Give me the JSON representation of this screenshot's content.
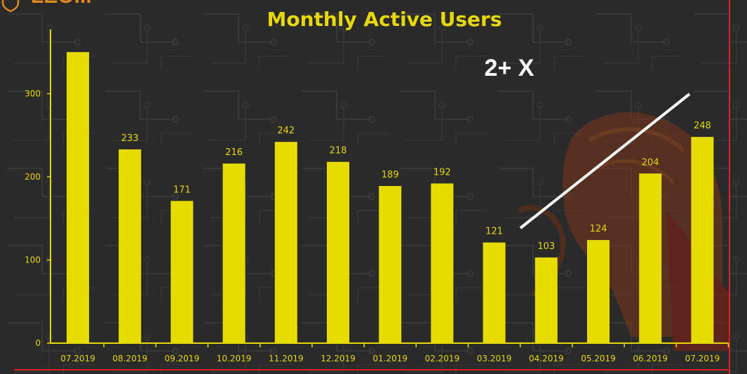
{
  "colors": {
    "background": "#2a2a2a",
    "bar": "#e6dc00",
    "text": "#e6d800",
    "frame": "#e02020",
    "brand": "#e08a1a",
    "annotation_line": "#ffffff"
  },
  "brand": {
    "logo_icon": "shield-logo-icon",
    "text": "LEO..."
  },
  "annotation": {
    "text": "2+ X"
  },
  "chart_data": {
    "type": "bar",
    "title": "Monthly Active Users",
    "xlabel": "",
    "ylabel": "",
    "ylim": [
      0,
      350
    ],
    "yticks": [
      0,
      100,
      200,
      300
    ],
    "grid": false,
    "categories": [
      "07.2019",
      "08.2019",
      "09.2019",
      "10.2019",
      "11.2019",
      "12.2019",
      "01.2019",
      "02.2019",
      "03.2019",
      "04.2019",
      "05.2019",
      "06.2019",
      "07.2019"
    ],
    "values": [
      350,
      233,
      171,
      216,
      242,
      218,
      189,
      192,
      121,
      103,
      124,
      204,
      248
    ],
    "data_labels": [
      "",
      "233",
      "171",
      "216",
      "242",
      "218",
      "189",
      "192",
      "121",
      "103",
      "124",
      "204",
      "248"
    ]
  }
}
